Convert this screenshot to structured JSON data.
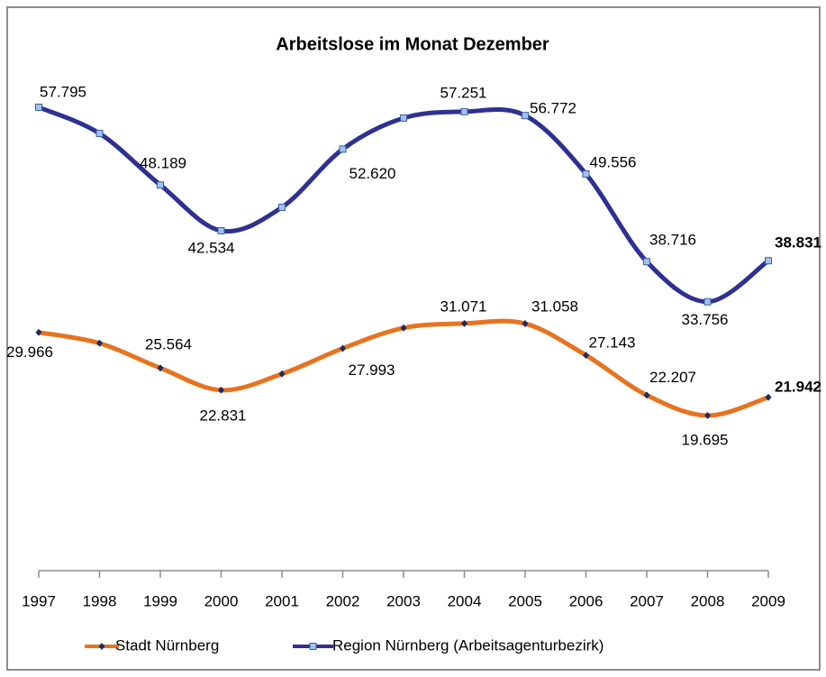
{
  "chart_data": {
    "type": "line",
    "title": "Arbeitslose im Monat Dezember",
    "categories": [
      "1997",
      "1998",
      "1999",
      "2000",
      "2001",
      "2002",
      "2003",
      "2004",
      "2005",
      "2006",
      "2007",
      "2008",
      "2009"
    ],
    "series": [
      {
        "name": "Stadt Nürnberg",
        "color": "#e8731f",
        "marker_color": "#1f2a5c",
        "values": [
          29966,
          28630,
          25564,
          22831,
          24840,
          27993,
          30520,
          31071,
          31058,
          27143,
          22207,
          19695,
          21942
        ],
        "value_labels": [
          "29.966",
          null,
          "25.564",
          "22.831",
          null,
          "27.993",
          null,
          "31.071",
          "31.058",
          "27.143",
          "22.207",
          "19.695",
          "21.942"
        ]
      },
      {
        "name": "Region Nürnberg (Arbeitsagenturbezirk)",
        "color": "#2e3192",
        "marker_color": "#9fc3ea",
        "values": [
          57795,
          54560,
          48189,
          42534,
          45430,
          52620,
          56460,
          57251,
          56772,
          49556,
          38716,
          33756,
          38831
        ],
        "value_labels": [
          "57.795",
          null,
          "48.189",
          "42.534",
          null,
          "52.620",
          null,
          "57.251",
          "56.772",
          "49.556",
          "38.716",
          "33.756",
          "38.831"
        ]
      }
    ]
  }
}
